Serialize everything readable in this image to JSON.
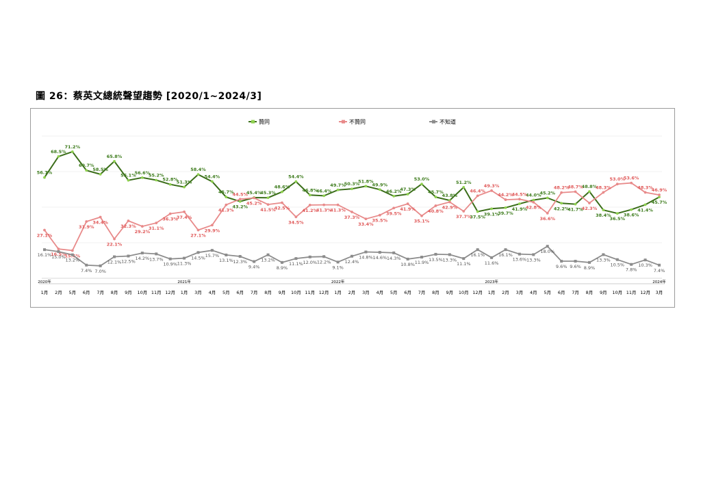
{
  "title": "圖 26：蔡英文總統聲望趨勢  [2020/1~2024/3]",
  "chart_data": {
    "type": "line",
    "categories": [
      "1月",
      "2月",
      "5月",
      "6月",
      "7月",
      "8月",
      "9月",
      "10月",
      "11月",
      "12月",
      "1月",
      "3月",
      "4月",
      "5月",
      "6月",
      "7月",
      "8月",
      "9月",
      "10月",
      "11月",
      "12月",
      "1月",
      "2月",
      "3月",
      "4月",
      "5月",
      "6月",
      "7月",
      "8月",
      "9月",
      "10月",
      "12月",
      "1月",
      "2月",
      "3月",
      "4月",
      "5月",
      "6月",
      "7月",
      "8月",
      "9月",
      "10月",
      "11月",
      "12月",
      "3月"
    ],
    "year_markers": [
      {
        "index": 0,
        "label": "2020年"
      },
      {
        "index": 10,
        "label": "2021年"
      },
      {
        "index": 21,
        "label": "2022年"
      },
      {
        "index": 32,
        "label": "2023年"
      },
      {
        "index": 44,
        "label": "2024年"
      }
    ],
    "ylim": [
      0,
      80
    ],
    "grid": "horizontal",
    "legend_position": "top",
    "series": [
      {
        "name": "贊同",
        "color": "#3b6e1a",
        "marker_color": "#8fd14f",
        "label_color": "#3b7a1a",
        "values": [
          56.7,
          68.5,
          71.2,
          60.7,
          58.5,
          65.8,
          55.1,
          56.6,
          55.2,
          52.8,
          51.3,
          58.4,
          54.4,
          45.7,
          43.2,
          45.4,
          45.3,
          48.6,
          54.4,
          46.8,
          46.4,
          49.7,
          50.3,
          51.8,
          49.9,
          46.2,
          47.3,
          53.0,
          45.7,
          43.8,
          51.2,
          37.5,
          39.1,
          39.7,
          41.9,
          44.0,
          45.2,
          42.2,
          41.7,
          48.8,
          38.4,
          36.5,
          38.6,
          41.4,
          45.7
        ]
      },
      {
        "name": "不贊同",
        "color": "#e88a8a",
        "marker_color": "#e88a8a",
        "label_color": "#e05a5a",
        "values": [
          27.1,
          16.5,
          15.6,
          31.9,
          34.4,
          22.1,
          32.3,
          29.2,
          31.1,
          36.3,
          37.4,
          27.1,
          29.9,
          41.3,
          44.5,
          45.2,
          41.5,
          42.5,
          34.5,
          41.2,
          41.3,
          41.3,
          37.3,
          33.4,
          35.5,
          39.5,
          41.9,
          35.1,
          40.8,
          42.9,
          37.7,
          46.4,
          49.3,
          44.2,
          44.5,
          42.8,
          36.6,
          48.2,
          48.7,
          42.3,
          48.3,
          53.0,
          53.6,
          48.3,
          46.9
        ]
      },
      {
        "name": "不知道",
        "color": "#8c8c8c",
        "marker_color": "#8c8c8c",
        "label_color": "#555555",
        "values": [
          16.1,
          15.0,
          13.2,
          7.4,
          7.0,
          12.1,
          12.5,
          14.2,
          13.7,
          10.9,
          11.3,
          14.5,
          15.7,
          13.1,
          12.3,
          9.4,
          13.2,
          8.9,
          11.1,
          12.0,
          12.2,
          9.1,
          12.4,
          14.8,
          14.6,
          14.3,
          10.8,
          11.9,
          13.5,
          13.3,
          11.1,
          16.1,
          11.6,
          16.1,
          13.6,
          13.3,
          18.0,
          9.6,
          9.6,
          8.9,
          13.3,
          10.5,
          7.8,
          10.3,
          7.4
        ]
      }
    ]
  }
}
